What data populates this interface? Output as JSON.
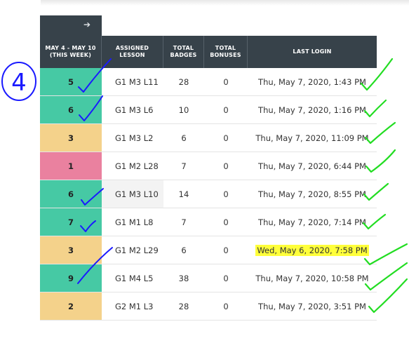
{
  "table": {
    "headers": {
      "week": [
        "MAY 4 - MAY 10",
        "(THIS WEEK)"
      ],
      "lesson": [
        "ASSIGNED",
        "LESSON"
      ],
      "badges": [
        "TOTAL",
        "BADGES"
      ],
      "bonuses": [
        "TOTAL",
        "BONUSES"
      ],
      "last_login": [
        "LAST LOGIN"
      ]
    },
    "rows": [
      {
        "week": "5",
        "lesson": "G1 M3 L11",
        "badges": "28",
        "bonuses": "0",
        "login": "Thu, May 7, 2020, 1:43 PM",
        "status": "green",
        "color": "#46c9a4"
      },
      {
        "week": "6",
        "lesson": "G1 M3 L6",
        "badges": "10",
        "bonuses": "0",
        "login": "Thu, May 7, 2020, 1:16 PM",
        "status": "green",
        "color": "#46c9a4"
      },
      {
        "week": "3",
        "lesson": "G1 M3 L2",
        "badges": "6",
        "bonuses": "0",
        "login": "Thu, May 7, 2020, 11:09 PM",
        "status": "yellow",
        "color": "#f4d28b"
      },
      {
        "week": "1",
        "lesson": "G1 M2 L28",
        "badges": "7",
        "bonuses": "0",
        "login": "Thu, May 7, 2020, 6:44 PM",
        "status": "pink",
        "color": "#ea819f"
      },
      {
        "week": "6",
        "lesson": "G1 M3 L10",
        "badges": "14",
        "bonuses": "0",
        "login": "Thu, May 7, 2020, 8:55 PM",
        "status": "green",
        "color": "#46c9a4"
      },
      {
        "week": "7",
        "lesson": "G1 M1 L8",
        "badges": "7",
        "bonuses": "0",
        "login": "Thu, May 7, 2020, 7:14 PM",
        "status": "green",
        "color": "#46c9a4"
      },
      {
        "week": "3",
        "lesson": "G1 M2 L29",
        "badges": "6",
        "bonuses": "0",
        "login": "Wed, May 6, 2020, 7:58 PM",
        "status": "yellow",
        "color": "#f4d28b",
        "highlighted": true
      },
      {
        "week": "9",
        "lesson": "G1 M4 L5",
        "badges": "38",
        "bonuses": "0",
        "login": "Thu, May 7, 2020, 10:58 PM",
        "status": "green",
        "color": "#46c9a4"
      },
      {
        "week": "2",
        "lesson": "G2 M1 L3",
        "badges": "28",
        "bonuses": "0",
        "login": "Thu, May 7, 2020, 3:51 PM",
        "status": "yellow",
        "color": "#f4d28b"
      }
    ]
  },
  "nav": {
    "icon": "arrow-right-icon",
    "glyph": "➔"
  },
  "annotations": {
    "circled_number": "4",
    "pen_colors": {
      "blue": "#1a1aff",
      "green": "#22dd22"
    }
  },
  "highlight_color": "#ffff3a"
}
